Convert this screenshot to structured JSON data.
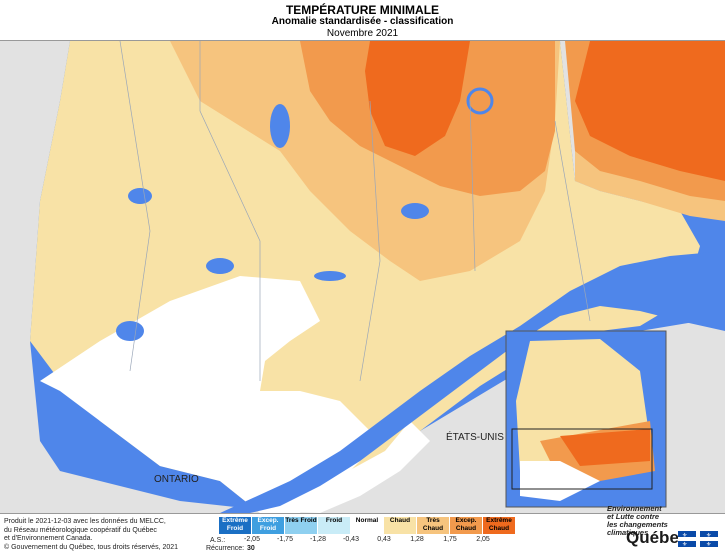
{
  "title": "TEMPÉRATURE MINIMALE",
  "subtitle": "Anomalie standardisée - classification",
  "period": "Novembre 2021",
  "map_labels": {
    "us": "ÉTATS-UNIS",
    "ontario": "ONTARIO"
  },
  "colors": {
    "water": "#4f86ea",
    "normal": "#ffffff",
    "chaud": "#f8e2a6",
    "tres_chaud": "#f6c47e",
    "excep_chaud": "#f29a4d",
    "extreme_chaud": "#ef6a1e",
    "extreme_froid": "#1a6fc4",
    "excep_froid": "#3f9fe0",
    "tres_froid": "#8fd0f0",
    "froid": "#c9ecf7"
  },
  "legend": {
    "classes": [
      {
        "label": "Extrême Froid",
        "color": "#1a6fc4"
      },
      {
        "label": "Excep. Froid",
        "color": "#3f9fe0"
      },
      {
        "label": "Très Froid",
        "color": "#8fd0f0"
      },
      {
        "label": "Froid",
        "color": "#c9ecf7"
      },
      {
        "label": "Normal",
        "color": "#ffffff"
      },
      {
        "label": "Chaud",
        "color": "#f8e2a6"
      },
      {
        "label": "Très Chaud",
        "color": "#f6c47e"
      },
      {
        "label": "Excep. Chaud",
        "color": "#f29a4d"
      },
      {
        "label": "Extrême Chaud",
        "color": "#ef6a1e"
      }
    ],
    "thresholds": [
      "-2,05",
      "-1,75",
      "-1,28",
      "-0,43",
      "0,43",
      "1,28",
      "1,75",
      "2,05"
    ],
    "as_label": "A.S.:",
    "recurrence_label": "Récurrence:",
    "recurrence_value": "30"
  },
  "footer": {
    "line1": "Produit le 2021-12-03 avec les données du MELCC,",
    "line2": "du Réseau météorologique coopératif du Québec",
    "line3": "et d'Environnement Canada.",
    "copyright": "© Gouvernement du Québec, tous droits réservés, 2021"
  },
  "ministry": {
    "line1": "Environnement",
    "line2": "et Lutte contre",
    "line3": "les changements",
    "line4": "climatiques"
  },
  "brand": "Québec"
}
